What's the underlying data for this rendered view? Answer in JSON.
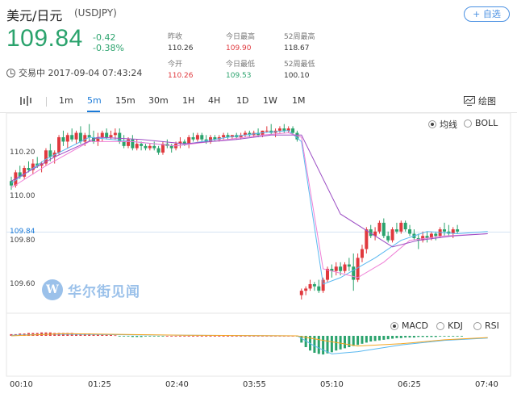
{
  "header": {
    "title": "美元/日元",
    "code": "(USDJPY)",
    "add_button": "+ 自选",
    "price": "109.84",
    "change": "-0.42",
    "change_pct": "-0.38%",
    "status": "交易中 2017-09-04 07:43:24"
  },
  "stats": {
    "prev_close_label": "昨收",
    "prev_close": "110.26",
    "day_high_label": "今日最高",
    "day_high": "109.90",
    "w52_high_label": "52周最高",
    "w52_high": "118.67",
    "open_label": "今开",
    "open": "110.26",
    "day_low_label": "今日最低",
    "day_low": "109.53",
    "w52_low_label": "52周最低",
    "w52_low": "100.10"
  },
  "tabs": {
    "items": [
      "1m",
      "5m",
      "15m",
      "30m",
      "1H",
      "4H",
      "1D",
      "1W",
      "1M"
    ],
    "active": "5m",
    "draw_label": "绘图"
  },
  "overlay_options": {
    "ma": "均线",
    "boll": "BOLL",
    "selected": "均线"
  },
  "indicator_options": {
    "macd": "MACD",
    "kdj": "KDJ",
    "rsi": "RSI",
    "selected": "MACD"
  },
  "watermark": "华尔街见闻",
  "colors": {
    "up": "#e0393e",
    "down": "#2ba36d",
    "accent": "#1a7ad8",
    "ma_short": "#5ab8f0",
    "ma_mid": "#ef7fd6",
    "ma_long": "#9c4ec4",
    "dif": "#5ab8f0",
    "dea": "#f5a623"
  },
  "chart_data": {
    "type": "candlestick",
    "y_labels": [
      "110.20",
      "110.00",
      "109.84",
      "109.80",
      "109.60"
    ],
    "current_price": 109.84,
    "x_labels": [
      "00:10",
      "01:25",
      "02:40",
      "03:55",
      "05:10",
      "06:25",
      "07:40"
    ],
    "candles": [
      [
        110.07,
        110.09,
        110.03,
        110.05
      ],
      [
        110.05,
        110.12,
        110.04,
        110.11
      ],
      [
        110.11,
        110.14,
        110.08,
        110.09
      ],
      [
        110.09,
        110.14,
        110.08,
        110.13
      ],
      [
        110.13,
        110.16,
        110.11,
        110.12
      ],
      [
        110.12,
        110.17,
        110.1,
        110.15
      ],
      [
        110.15,
        110.18,
        110.13,
        110.14
      ],
      [
        110.14,
        110.16,
        110.11,
        110.15
      ],
      [
        110.15,
        110.22,
        110.14,
        110.21
      ],
      [
        110.21,
        110.24,
        110.16,
        110.18
      ],
      [
        110.18,
        110.21,
        110.15,
        110.2
      ],
      [
        110.2,
        110.28,
        110.19,
        110.27
      ],
      [
        110.27,
        110.3,
        110.23,
        110.25
      ],
      [
        110.25,
        110.29,
        110.22,
        110.28
      ],
      [
        110.28,
        110.31,
        110.25,
        110.26
      ],
      [
        110.26,
        110.3,
        110.24,
        110.29
      ],
      [
        110.29,
        110.32,
        110.24,
        110.25
      ],
      [
        110.25,
        110.29,
        110.23,
        110.28
      ],
      [
        110.28,
        110.33,
        110.25,
        110.27
      ],
      [
        110.27,
        110.3,
        110.24,
        110.25
      ],
      [
        110.25,
        110.29,
        110.23,
        110.27
      ],
      [
        110.27,
        110.3,
        110.25,
        110.29
      ],
      [
        110.29,
        110.31,
        110.26,
        110.27
      ],
      [
        110.27,
        110.3,
        110.26,
        110.28
      ],
      [
        110.28,
        110.31,
        110.26,
        110.29
      ],
      [
        110.29,
        110.31,
        110.24,
        110.25
      ],
      [
        110.25,
        110.28,
        110.22,
        110.23
      ],
      [
        110.23,
        110.27,
        110.22,
        110.26
      ],
      [
        110.26,
        110.28,
        110.21,
        110.22
      ],
      [
        110.22,
        110.26,
        110.21,
        110.24
      ],
      [
        110.24,
        110.25,
        110.21,
        110.23
      ],
      [
        110.23,
        110.24,
        110.21,
        110.22
      ],
      [
        110.22,
        110.24,
        110.21,
        110.23
      ],
      [
        110.23,
        110.25,
        110.21,
        110.22
      ],
      [
        110.22,
        110.23,
        110.19,
        110.2
      ],
      [
        110.2,
        110.25,
        110.19,
        110.24
      ],
      [
        110.24,
        110.26,
        110.22,
        110.23
      ],
      [
        110.23,
        110.24,
        110.2,
        110.22
      ],
      [
        110.22,
        110.25,
        110.21,
        110.24
      ],
      [
        110.24,
        110.27,
        110.22,
        110.25
      ],
      [
        110.25,
        110.26,
        110.23,
        110.24
      ],
      [
        110.24,
        110.28,
        110.22,
        110.27
      ],
      [
        110.27,
        110.29,
        110.25,
        110.26
      ],
      [
        110.26,
        110.29,
        110.25,
        110.28
      ],
      [
        110.28,
        110.29,
        110.25,
        110.26
      ],
      [
        110.26,
        110.28,
        110.24,
        110.25
      ],
      [
        110.25,
        110.28,
        110.24,
        110.27
      ],
      [
        110.27,
        110.28,
        110.25,
        110.26
      ],
      [
        110.26,
        110.28,
        110.25,
        110.27
      ],
      [
        110.27,
        110.29,
        110.26,
        110.28
      ],
      [
        110.28,
        110.29,
        110.26,
        110.27
      ],
      [
        110.27,
        110.28,
        110.26,
        110.28
      ],
      [
        110.28,
        110.29,
        110.26,
        110.27
      ],
      [
        110.27,
        110.29,
        110.26,
        110.28
      ],
      [
        110.28,
        110.3,
        110.27,
        110.29
      ],
      [
        110.29,
        110.3,
        110.27,
        110.28
      ],
      [
        110.28,
        110.3,
        110.27,
        110.29
      ],
      [
        110.29,
        110.31,
        110.27,
        110.28
      ],
      [
        110.28,
        110.3,
        110.27,
        110.3
      ],
      [
        110.3,
        110.32,
        110.29,
        110.3
      ],
      [
        110.3,
        110.33,
        110.28,
        110.29
      ],
      [
        110.29,
        110.31,
        110.27,
        110.3
      ],
      [
        110.3,
        110.32,
        110.29,
        110.31
      ],
      [
        110.31,
        110.33,
        110.29,
        110.3
      ],
      [
        110.3,
        110.32,
        110.29,
        110.31
      ],
      [
        110.31,
        110.32,
        110.28,
        110.29
      ],
      [
        110.29,
        110.3,
        110.25,
        110.26
      ],
      [
        109.55,
        109.58,
        109.53,
        109.57
      ],
      [
        109.57,
        109.59,
        109.55,
        109.58
      ],
      [
        109.58,
        109.62,
        109.57,
        109.6
      ],
      [
        109.6,
        109.61,
        109.57,
        109.59
      ],
      [
        109.59,
        109.62,
        109.56,
        109.57
      ],
      [
        109.57,
        109.63,
        109.56,
        109.62
      ],
      [
        109.62,
        109.68,
        109.61,
        109.67
      ],
      [
        109.67,
        109.69,
        109.63,
        109.66
      ],
      [
        109.66,
        109.7,
        109.64,
        109.68
      ],
      [
        109.68,
        109.7,
        109.64,
        109.66
      ],
      [
        109.66,
        109.7,
        109.65,
        109.69
      ],
      [
        109.69,
        109.72,
        109.66,
        109.68
      ],
      [
        109.68,
        109.74,
        109.57,
        109.62
      ],
      [
        109.62,
        109.74,
        109.61,
        109.72
      ],
      [
        109.72,
        109.78,
        109.7,
        109.76
      ],
      [
        109.76,
        109.86,
        109.74,
        109.85
      ],
      [
        109.85,
        109.87,
        109.81,
        109.82
      ],
      [
        109.82,
        109.86,
        109.8,
        109.84
      ],
      [
        109.84,
        109.89,
        109.83,
        109.88
      ],
      [
        109.88,
        109.9,
        109.81,
        109.82
      ],
      [
        109.82,
        109.84,
        109.79,
        109.8
      ],
      [
        109.8,
        109.86,
        109.79,
        109.85
      ],
      [
        109.85,
        109.88,
        109.83,
        109.84
      ],
      [
        109.84,
        109.89,
        109.83,
        109.88
      ],
      [
        109.88,
        109.89,
        109.84,
        109.85
      ],
      [
        109.85,
        109.87,
        109.82,
        109.83
      ],
      [
        109.83,
        109.85,
        109.8,
        109.81
      ],
      [
        109.81,
        109.83,
        109.76,
        109.8
      ],
      [
        109.8,
        109.84,
        109.79,
        109.82
      ],
      [
        109.82,
        109.84,
        109.79,
        109.81
      ],
      [
        109.81,
        109.84,
        109.8,
        109.83
      ],
      [
        109.83,
        109.84,
        109.8,
        109.82
      ],
      [
        109.82,
        109.86,
        109.81,
        109.85
      ],
      [
        109.85,
        109.88,
        109.82,
        109.84
      ],
      [
        109.84,
        109.87,
        109.82,
        109.83
      ],
      [
        109.83,
        109.86,
        109.81,
        109.85
      ],
      [
        109.85,
        109.87,
        109.83,
        109.84
      ]
    ],
    "ma_short": [
      [
        0,
        110.06
      ],
      [
        8,
        110.17
      ],
      [
        18,
        110.27
      ],
      [
        28,
        110.25
      ],
      [
        38,
        110.23
      ],
      [
        50,
        110.27
      ],
      [
        58,
        110.29
      ],
      [
        64,
        110.3
      ],
      [
        67,
        110.25
      ],
      [
        72,
        109.6
      ],
      [
        76,
        109.63
      ],
      [
        84,
        109.72
      ],
      [
        90,
        109.8
      ],
      [
        96,
        109.84
      ],
      [
        103,
        109.83
      ],
      [
        110,
        109.84
      ]
    ],
    "ma_mid": [
      [
        0,
        110.04
      ],
      [
        8,
        110.14
      ],
      [
        18,
        110.25
      ],
      [
        28,
        110.25
      ],
      [
        38,
        110.23
      ],
      [
        50,
        110.26
      ],
      [
        58,
        110.28
      ],
      [
        64,
        110.29
      ],
      [
        67,
        110.27
      ],
      [
        72,
        109.67
      ],
      [
        80,
        109.63
      ],
      [
        86,
        109.7
      ],
      [
        92,
        109.8
      ],
      [
        100,
        109.82
      ],
      [
        110,
        109.83
      ]
    ],
    "ma_long": [
      [
        0,
        110.07
      ],
      [
        10,
        110.18
      ],
      [
        20,
        110.27
      ],
      [
        30,
        110.26
      ],
      [
        40,
        110.24
      ],
      [
        52,
        110.26
      ],
      [
        60,
        110.28
      ],
      [
        67,
        110.28
      ],
      [
        76,
        109.92
      ],
      [
        88,
        109.77
      ],
      [
        94,
        109.8
      ],
      [
        102,
        109.82
      ],
      [
        110,
        109.83
      ]
    ],
    "macd_bars": [
      0.3,
      0.3,
      0.4,
      0.4,
      0.5,
      0.5,
      0.5,
      0.6,
      0.6,
      0.6,
      0.5,
      0.5,
      0.5,
      0.5,
      0.5,
      0.4,
      0.4,
      0.4,
      0.4,
      0.3,
      0.3,
      0.3,
      0.2,
      0.2,
      0.1,
      -0.1,
      -0.1,
      -0.1,
      -0.2,
      -0.2,
      -0.2,
      -0.1,
      -0.1,
      -0.1,
      -0.1,
      -0.1,
      0.0,
      0.0,
      0.0,
      0.0,
      0.0,
      0.0,
      0.0,
      0.0,
      0.0,
      0.0,
      0.0,
      0.0,
      0.0,
      0.0,
      0.0,
      0.0,
      0.0,
      0.0,
      0.0,
      0.0,
      0.0,
      0.0,
      0.0,
      0.0,
      0.0,
      0.0,
      0.0,
      0.0,
      0.0,
      0.0,
      -0.1,
      -1.2,
      -2.0,
      -2.6,
      -3.0,
      -3.2,
      -3.3,
      -3.1,
      -2.9,
      -2.6,
      -2.4,
      -2.2,
      -2.0,
      -1.8,
      -1.6,
      -1.4,
      -1.2,
      -1.0,
      -0.9,
      -0.8,
      -0.7,
      -0.6,
      -0.5,
      -0.4,
      -0.4,
      -0.3,
      -0.3,
      -0.3,
      -0.2,
      -0.2,
      -0.2,
      -0.2,
      -0.2,
      -0.1,
      -0.1,
      -0.1,
      -0.1,
      -0.1,
      -0.1
    ],
    "dif": [
      [
        0,
        0.1
      ],
      [
        10,
        0.3
      ],
      [
        40,
        0.1
      ],
      [
        66,
        0.0
      ],
      [
        70,
        -1.8
      ],
      [
        74,
        -3.2
      ],
      [
        80,
        -2.8
      ],
      [
        90,
        -1.6
      ],
      [
        100,
        -0.8
      ],
      [
        110,
        -0.4
      ]
    ],
    "dea": [
      [
        0,
        0.0
      ],
      [
        12,
        0.4
      ],
      [
        40,
        0.1
      ],
      [
        66,
        0.0
      ],
      [
        72,
        -0.8
      ],
      [
        80,
        -1.8
      ],
      [
        90,
        -1.4
      ],
      [
        100,
        -0.7
      ],
      [
        110,
        -0.3
      ]
    ]
  }
}
